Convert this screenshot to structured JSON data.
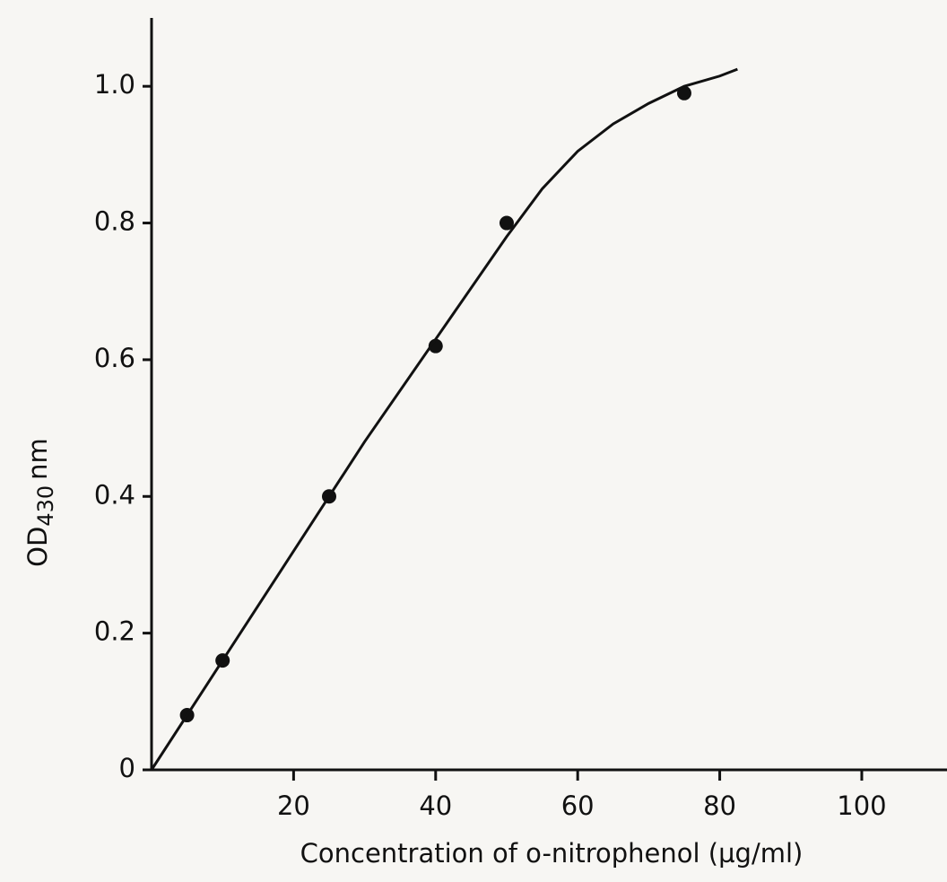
{
  "chart_data": {
    "type": "scatter",
    "x_label": "Concentration of o-nitrophenol (µg/ml)",
    "y_label": {
      "main": "OD",
      "sub": "430",
      "unit": "nm"
    },
    "xlim": [
      0,
      112
    ],
    "ylim": [
      0,
      1.1
    ],
    "xticks": [
      20,
      40,
      60,
      80,
      100
    ],
    "yticks": [
      0,
      0.2,
      0.4,
      0.6,
      0.8,
      {
        "value": 1,
        "label": "1.0"
      }
    ],
    "grid": false,
    "series": [
      {
        "mode": "markers",
        "color": "#111111",
        "x": [
          5,
          10,
          25,
          40,
          50,
          75
        ],
        "values": [
          0.08,
          0.16,
          0.4,
          0.62,
          0.8,
          0.99
        ]
      },
      {
        "mode": "line",
        "color": "#111111",
        "x": [
          0,
          10,
          20,
          30,
          40,
          50,
          55,
          60,
          65,
          70,
          75,
          80,
          82.5
        ],
        "values": [
          0,
          0.16,
          0.32,
          0.48,
          0.63,
          0.78,
          0.85,
          0.905,
          0.945,
          0.975,
          1.0,
          1.015,
          1.025
        ]
      }
    ]
  }
}
